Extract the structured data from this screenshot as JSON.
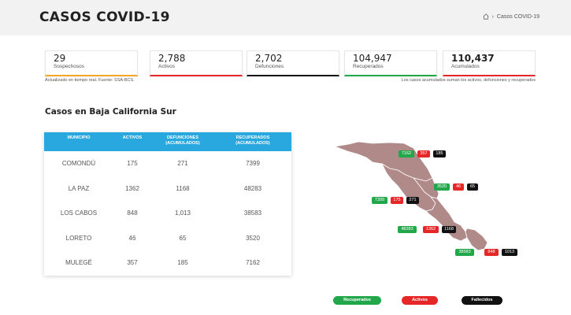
{
  "header": {
    "title": "CASOS COVID-19",
    "breadcrumb_current": "Casos COVID-19",
    "breadcrumb_separator": "›"
  },
  "stats": [
    {
      "value": "29",
      "label": "Sospechosos",
      "color": "#f5a623"
    },
    {
      "value": "2,788",
      "label": "Activos",
      "color": "#e52727"
    },
    {
      "value": "2,702",
      "label": "Defunciones",
      "color": "#111111"
    },
    {
      "value": "104,947",
      "label": "Recuperados",
      "color": "#22a84a"
    },
    {
      "value": "110,437",
      "label": "Acumulados",
      "color": "#e52727"
    }
  ],
  "notes": {
    "left": "Actualizado en tiempo real. Fuente: SSA-BCS.",
    "right": "Los casos acumulados suman los activos, defunciones y recuperados"
  },
  "section_title": "Casos en Baja California Sur",
  "table": {
    "headers": {
      "municipio": "MUNICIPIO",
      "activos": "ACTIVOS",
      "defunciones": "DEFUNCIONES",
      "defunciones_sub": "(ACUMULADOS)",
      "recuperados": "RECUPERADOS",
      "recuperados_sub": "(ACUMULADOS)"
    },
    "rows": [
      {
        "municipio": "COMONDÚ",
        "activos": "175",
        "defunciones": "271",
        "recuperados": "7399"
      },
      {
        "municipio": "LA PAZ",
        "activos": "1362",
        "defunciones": "1168",
        "recuperados": "48283"
      },
      {
        "municipio": "LOS CABOS",
        "activos": "848",
        "defunciones": "1,013",
        "recuperados": "38583"
      },
      {
        "municipio": "LORETO",
        "activos": "46",
        "defunciones": "65",
        "recuperados": "3520"
      },
      {
        "municipio": "MULEGÉ",
        "activos": "357",
        "defunciones": "185",
        "recuperados": "7162"
      }
    ]
  },
  "map_labels": {
    "mulege": {
      "recuperados": "7162",
      "activos": "357",
      "fallecidos": "185"
    },
    "loreto": {
      "recuperados": "3520",
      "activos": "46",
      "fallecidos": "65"
    },
    "comondu": {
      "recuperados": "7399",
      "activos": "175",
      "fallecidos": "271"
    },
    "lapaz": {
      "recuperados": "48283",
      "activos": "1362",
      "fallecidos": "1168"
    },
    "loscabos": {
      "recuperados": "38583",
      "activos": "848",
      "fallecidos": "1013"
    }
  },
  "legend": {
    "recuperados": "Recuperados",
    "activos": "Activos",
    "fallecidos": "Fallecidos"
  },
  "colors": {
    "recuperados": "#22a84a",
    "activos": "#e52727",
    "fallecidos": "#111111",
    "table_header": "#29a8df",
    "map_fill": "#b08a88"
  }
}
